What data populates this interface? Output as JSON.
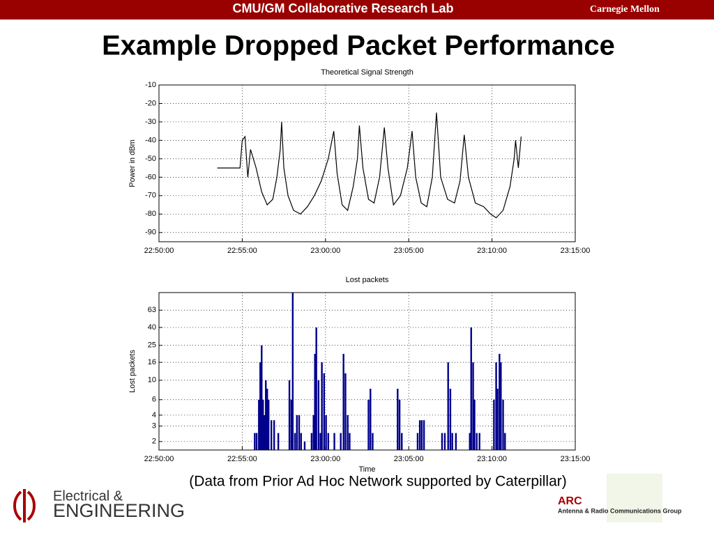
{
  "header": {
    "lab": "CMU/GM Collaborative Research Lab",
    "university": "Carnegie Mellon"
  },
  "title": "Example Dropped Packet Performance",
  "chart_data": [
    {
      "type": "line",
      "title": "Theoretical Signal Strength",
      "ylabel": "Power in dBm",
      "color": "#000000",
      "grid": true,
      "xlim": [
        "22:50:00",
        "23:15:00"
      ],
      "xticks": [
        "22:50:00",
        "22:55:00",
        "23:00:00",
        "23:05:00",
        "23:10:00",
        "23:15:00"
      ],
      "ylim": [
        -95,
        -10
      ],
      "yticks": [
        -10,
        -20,
        -30,
        -40,
        -50,
        -60,
        -70,
        -80,
        -90
      ],
      "x": [
        "22:53:30",
        "22:54:52",
        "22:55:00",
        "22:55:10",
        "22:55:20",
        "22:55:30",
        "22:55:50",
        "22:56:10",
        "22:56:30",
        "22:56:50",
        "22:57:05",
        "22:57:17",
        "22:57:22",
        "22:57:30",
        "22:57:45",
        "22:58:05",
        "22:58:30",
        "22:58:55",
        "22:59:20",
        "22:59:45",
        "23:00:10",
        "23:00:30",
        "23:00:42",
        "23:01:00",
        "23:01:20",
        "23:01:40",
        "23:01:55",
        "23:02:02",
        "23:02:15",
        "23:02:35",
        "23:02:55",
        "23:03:15",
        "23:03:32",
        "23:03:45",
        "23:04:05",
        "23:04:30",
        "23:04:55",
        "23:05:12",
        "23:05:25",
        "23:05:45",
        "23:06:05",
        "23:06:25",
        "23:06:40",
        "23:06:55",
        "23:07:20",
        "23:07:45",
        "23:08:05",
        "23:08:20",
        "23:08:35",
        "23:09:00",
        "23:09:30",
        "23:09:55",
        "23:10:15",
        "23:10:40",
        "23:11:05",
        "23:11:20",
        "23:11:25",
        "23:11:35",
        "23:11:45"
      ],
      "values": [
        -55,
        -55,
        -40,
        -38,
        -60,
        -45,
        -55,
        -68,
        -75,
        -72,
        -60,
        -45,
        -30,
        -55,
        -70,
        -78,
        -80,
        -76,
        -70,
        -62,
        -50,
        -35,
        -58,
        -75,
        -78,
        -65,
        -50,
        -32,
        -55,
        -72,
        -74,
        -60,
        -33,
        -55,
        -75,
        -70,
        -55,
        -35,
        -60,
        -74,
        -76,
        -60,
        -25,
        -60,
        -72,
        -74,
        -62,
        -37,
        -60,
        -74,
        -76,
        -80,
        -82,
        -78,
        -65,
        -50,
        -40,
        -55,
        -38
      ]
    },
    {
      "type": "bar",
      "title": "Lost packets",
      "ylabel": "Lost packets",
      "xlabel": "Time",
      "color": "#00008b",
      "grid": true,
      "log": true,
      "xlim": [
        "22:50:00",
        "23:15:00"
      ],
      "xticks": [
        "22:50:00",
        "22:55:00",
        "23:00:00",
        "23:05:00",
        "23:10:00",
        "23:15:00"
      ],
      "ylim": [
        1.6,
        100
      ],
      "yticks": [
        2,
        3,
        4,
        6,
        10,
        16,
        25,
        40,
        63
      ],
      "x": [
        "22:55:45",
        "22:55:52",
        "22:56:00",
        "22:56:05",
        "22:56:10",
        "22:56:15",
        "22:56:20",
        "22:56:25",
        "22:56:30",
        "22:56:35",
        "22:56:45",
        "22:56:55",
        "22:57:10",
        "22:57:50",
        "22:57:57",
        "22:58:02",
        "22:58:10",
        "22:58:17",
        "22:58:25",
        "22:58:32",
        "22:58:45",
        "22:59:10",
        "22:59:17",
        "22:59:22",
        "22:59:27",
        "22:59:35",
        "22:59:42",
        "22:59:47",
        "22:59:55",
        "23:00:02",
        "23:00:10",
        "23:00:32",
        "23:00:55",
        "23:01:05",
        "23:01:12",
        "23:01:20",
        "23:01:27",
        "23:02:35",
        "23:02:42",
        "23:02:50",
        "23:04:20",
        "23:04:27",
        "23:04:35",
        "23:05:32",
        "23:05:40",
        "23:05:47",
        "23:05:55",
        "23:07:00",
        "23:07:10",
        "23:07:22",
        "23:07:30",
        "23:07:37",
        "23:07:50",
        "23:08:40",
        "23:08:45",
        "23:08:52",
        "23:08:57",
        "23:09:05",
        "23:09:15",
        "23:10:07",
        "23:10:15",
        "23:10:20",
        "23:10:27",
        "23:10:32",
        "23:10:40",
        "23:10:47"
      ],
      "values": [
        2.5,
        2.5,
        6,
        16,
        25,
        6,
        4,
        10,
        8,
        6,
        3.5,
        3.5,
        2.5,
        10,
        6,
        100,
        2.5,
        4,
        4,
        2.5,
        2,
        2.5,
        4,
        20,
        40,
        10,
        2.5,
        16,
        12,
        4,
        2.5,
        2.5,
        2.5,
        20,
        12,
        4,
        2.5,
        6,
        8,
        2.5,
        8,
        6,
        2.5,
        2.5,
        3.5,
        3.5,
        3.5,
        2.5,
        2.5,
        16,
        8,
        2.5,
        2.5,
        2.5,
        40,
        16,
        6,
        2.5,
        2.5,
        6,
        16,
        8,
        20,
        16,
        6,
        2.5
      ]
    }
  ],
  "caption": "(Data from Prior Ad Hoc Network supported by Caterpillar)",
  "footer": {
    "dept_top": "Electrical &",
    "dept_bottom": "ENGINEERING",
    "group_logo": "ARC",
    "group": "Antenna & Radio Communications Group"
  }
}
